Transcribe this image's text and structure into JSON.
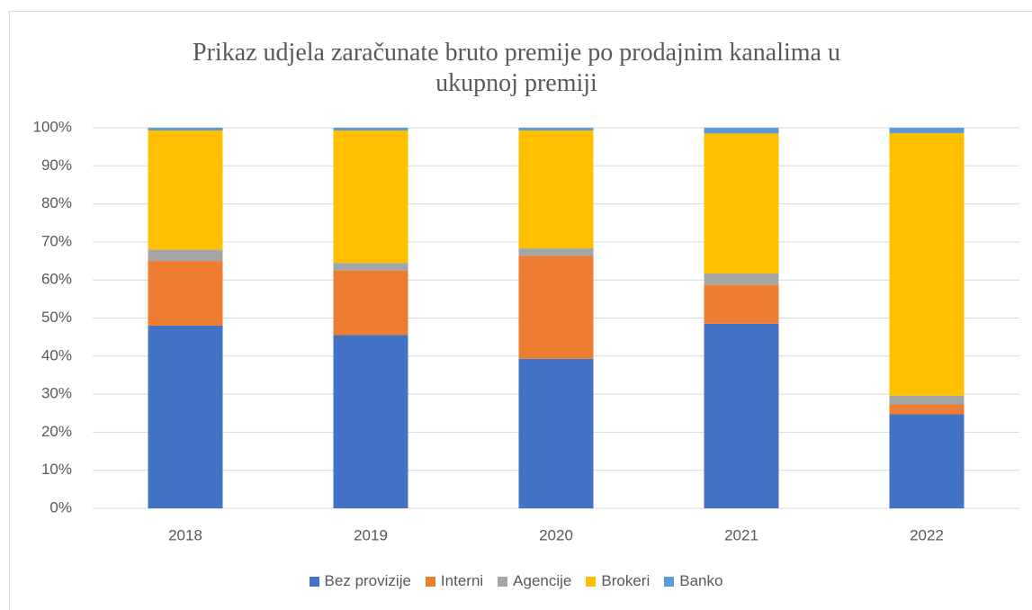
{
  "chart_data": {
    "type": "stacked_bar",
    "title": "Prikaz udjela zaračunate bruto premije po prodajnim kanalima u ukupnoj premiji",
    "categories": [
      "2018",
      "2019",
      "2020",
      "2021",
      "2022"
    ],
    "series": [
      {
        "name": "Bez provizije",
        "color": "#4472c4",
        "values": [
          48,
          45.5,
          39.3,
          48.5,
          24.7
        ]
      },
      {
        "name": "Interni",
        "color": "#ed7d31",
        "values": [
          17,
          17,
          27,
          10.2,
          2.6
        ]
      },
      {
        "name": "Agencije",
        "color": "#a5a5a5",
        "values": [
          3,
          2,
          2,
          3,
          2.3
        ]
      },
      {
        "name": "Brokeri",
        "color": "#ffc000",
        "values": [
          31.3,
          34.8,
          31,
          36.8,
          69
        ]
      },
      {
        "name": "Banko",
        "color": "#5b9bd5",
        "values": [
          0.7,
          0.7,
          0.7,
          1.5,
          1.4
        ]
      }
    ],
    "ylim": [
      0,
      100
    ],
    "yticks": [
      {
        "value": 0,
        "label": "0%"
      },
      {
        "value": 10,
        "label": "10%"
      },
      {
        "value": 20,
        "label": "20%"
      },
      {
        "value": 30,
        "label": "30%"
      },
      {
        "value": 40,
        "label": "40%"
      },
      {
        "value": 50,
        "label": "50%"
      },
      {
        "value": 60,
        "label": "60%"
      },
      {
        "value": 70,
        "label": "70%"
      },
      {
        "value": 80,
        "label": "80%"
      },
      {
        "value": 90,
        "label": "90%"
      },
      {
        "value": 100,
        "label": "100%"
      }
    ],
    "grid": true,
    "legend": "bottom"
  }
}
